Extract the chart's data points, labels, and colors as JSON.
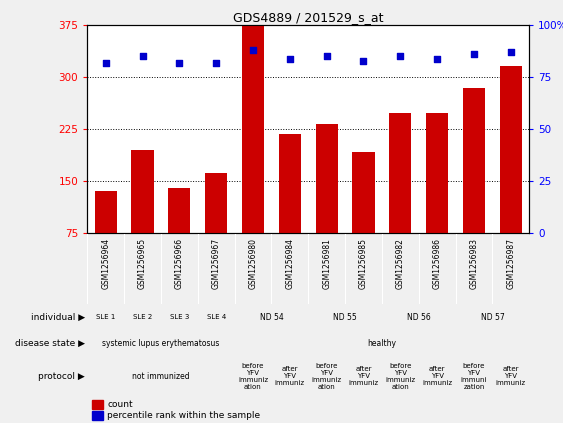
{
  "title": "GDS4889 / 201529_s_at",
  "samples": [
    "GSM1256964",
    "GSM1256965",
    "GSM1256966",
    "GSM1256967",
    "GSM1256980",
    "GSM1256984",
    "GSM1256981",
    "GSM1256985",
    "GSM1256982",
    "GSM1256986",
    "GSM1256983",
    "GSM1256987"
  ],
  "counts": [
    135,
    195,
    140,
    162,
    375,
    218,
    232,
    192,
    248,
    248,
    285,
    316
  ],
  "percentiles": [
    82,
    85,
    82,
    82,
    88,
    84,
    85,
    83,
    85,
    84,
    86,
    87
  ],
  "bar_color": "#cc0000",
  "dot_color": "#0000cc",
  "ylim_left": [
    75,
    375
  ],
  "ylim_right": [
    0,
    100
  ],
  "yticks_left": [
    75,
    150,
    225,
    300,
    375
  ],
  "yticks_right": [
    0,
    25,
    50,
    75,
    100
  ],
  "ytick_labels_right": [
    "0",
    "25",
    "50",
    "75",
    "100%"
  ],
  "bg_color": "#f0f0f0",
  "individual_cells": [
    {
      "text": "SLE 1",
      "color": "#c8e6c9",
      "span": 1
    },
    {
      "text": "SLE 2",
      "color": "#b8dab9",
      "span": 1
    },
    {
      "text": "SLE 3",
      "color": "#c8e6c9",
      "span": 1
    },
    {
      "text": "SLE 4",
      "color": "#b8dab9",
      "span": 1
    },
    {
      "text": "ND 54",
      "color": "#7dde7d",
      "span": 2
    },
    {
      "text": "ND 55",
      "color": "#55cc55",
      "span": 2
    },
    {
      "text": "ND 56",
      "color": "#33bb33",
      "span": 2
    },
    {
      "text": "ND 57",
      "color": "#22aa22",
      "span": 2
    }
  ],
  "disease_cells": [
    {
      "text": "systemic lupus erythematosus",
      "color": "#b0a8e0",
      "span": 4
    },
    {
      "text": "healthy",
      "color": "#7b68ee",
      "span": 8
    }
  ],
  "protocol_cells": [
    {
      "text": "not immunized",
      "color": "#f4b8b8",
      "span": 4
    },
    {
      "text": "before\nYFV\nimmuniz\nation",
      "color": "#cd5c5c",
      "span": 1
    },
    {
      "text": "after\nYFV\nimmuniz",
      "color": "#cd5c5c",
      "span": 1
    },
    {
      "text": "before\nYFV\nimmuniz\nation",
      "color": "#cd5c5c",
      "span": 1
    },
    {
      "text": "after\nYFV\nimmuniz",
      "color": "#cd5c5c",
      "span": 1
    },
    {
      "text": "before\nYFV\nimmuniz\nation",
      "color": "#cd5c5c",
      "span": 1
    },
    {
      "text": "after\nYFV\nimmuniz",
      "color": "#cd5c5c",
      "span": 1
    },
    {
      "text": "before\nYFV\nimmuni\nzation",
      "color": "#cd5c5c",
      "span": 1
    },
    {
      "text": "after\nYFV\nimmuniz",
      "color": "#cd5c5c",
      "span": 1
    }
  ],
  "row_labels": [
    "individual",
    "disease state",
    "protocol"
  ],
  "legend_items": [
    {
      "color": "#cc0000",
      "label": "count"
    },
    {
      "color": "#0000cc",
      "label": "percentile rank within the sample"
    }
  ]
}
